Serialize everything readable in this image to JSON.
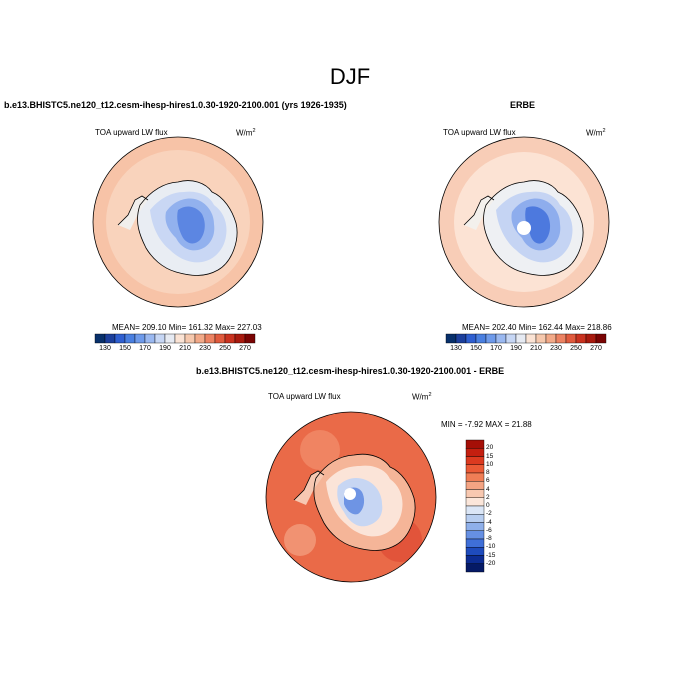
{
  "figure": {
    "season_title": "DJF"
  },
  "panel_model": {
    "title": "b.e13.BHISTC5.ne120_t12.cesm-ihesp-hires1.0.30-1920-2100.001 (yrs 1926-1935)",
    "variable": "TOA upward LW flux",
    "units": "W/m",
    "units_sup": "2",
    "stats": "MEAN= 209.10  Min= 161.32  Max= 227.03"
  },
  "panel_obs": {
    "title": "ERBE",
    "variable": "TOA upward LW flux",
    "units": "W/m",
    "units_sup": "2",
    "stats": "MEAN= 202.40  Min= 162.44  Max= 218.86"
  },
  "panel_diff": {
    "title": "b.e13.BHISTC5.ne120_t12.cesm-ihesp-hires1.0.30-1920-2100.001 - ERBE",
    "variable": "TOA upward LW flux",
    "units": "W/m",
    "units_sup": "2",
    "stats": "MIN =  -7.92 MAX =  21.88"
  },
  "colorbar_abs": {
    "labels": [
      "130",
      "150",
      "170",
      "190",
      "210",
      "230",
      "250",
      "270"
    ],
    "colors": [
      "#08306b",
      "#1c3f9c",
      "#2f5fd0",
      "#4a7fe0",
      "#6e9aea",
      "#9ab8f0",
      "#c6d6f4",
      "#e6eaf2",
      "#fbe3d4",
      "#f6c8ad",
      "#f2a988",
      "#ec8262",
      "#e05a3d",
      "#c9321f",
      "#a81a0e",
      "#7a0403"
    ]
  },
  "colorbar_diff": {
    "labels": [
      "20",
      "15",
      "10",
      "8",
      "6",
      "4",
      "2",
      "0",
      "-2",
      "-4",
      "-6",
      "-8",
      "-10",
      "-15",
      "-20"
    ],
    "colors": [
      "#a50f07",
      "#c41f10",
      "#dc3a20",
      "#eb5a36",
      "#f07e56",
      "#f4a483",
      "#f8c8b0",
      "#fbe6da",
      "#dbe6f6",
      "#b8cef0",
      "#8fb0ea",
      "#6690e3",
      "#3f6fd8",
      "#1e4bbd",
      "#0c2c93",
      "#051a66"
    ]
  }
}
